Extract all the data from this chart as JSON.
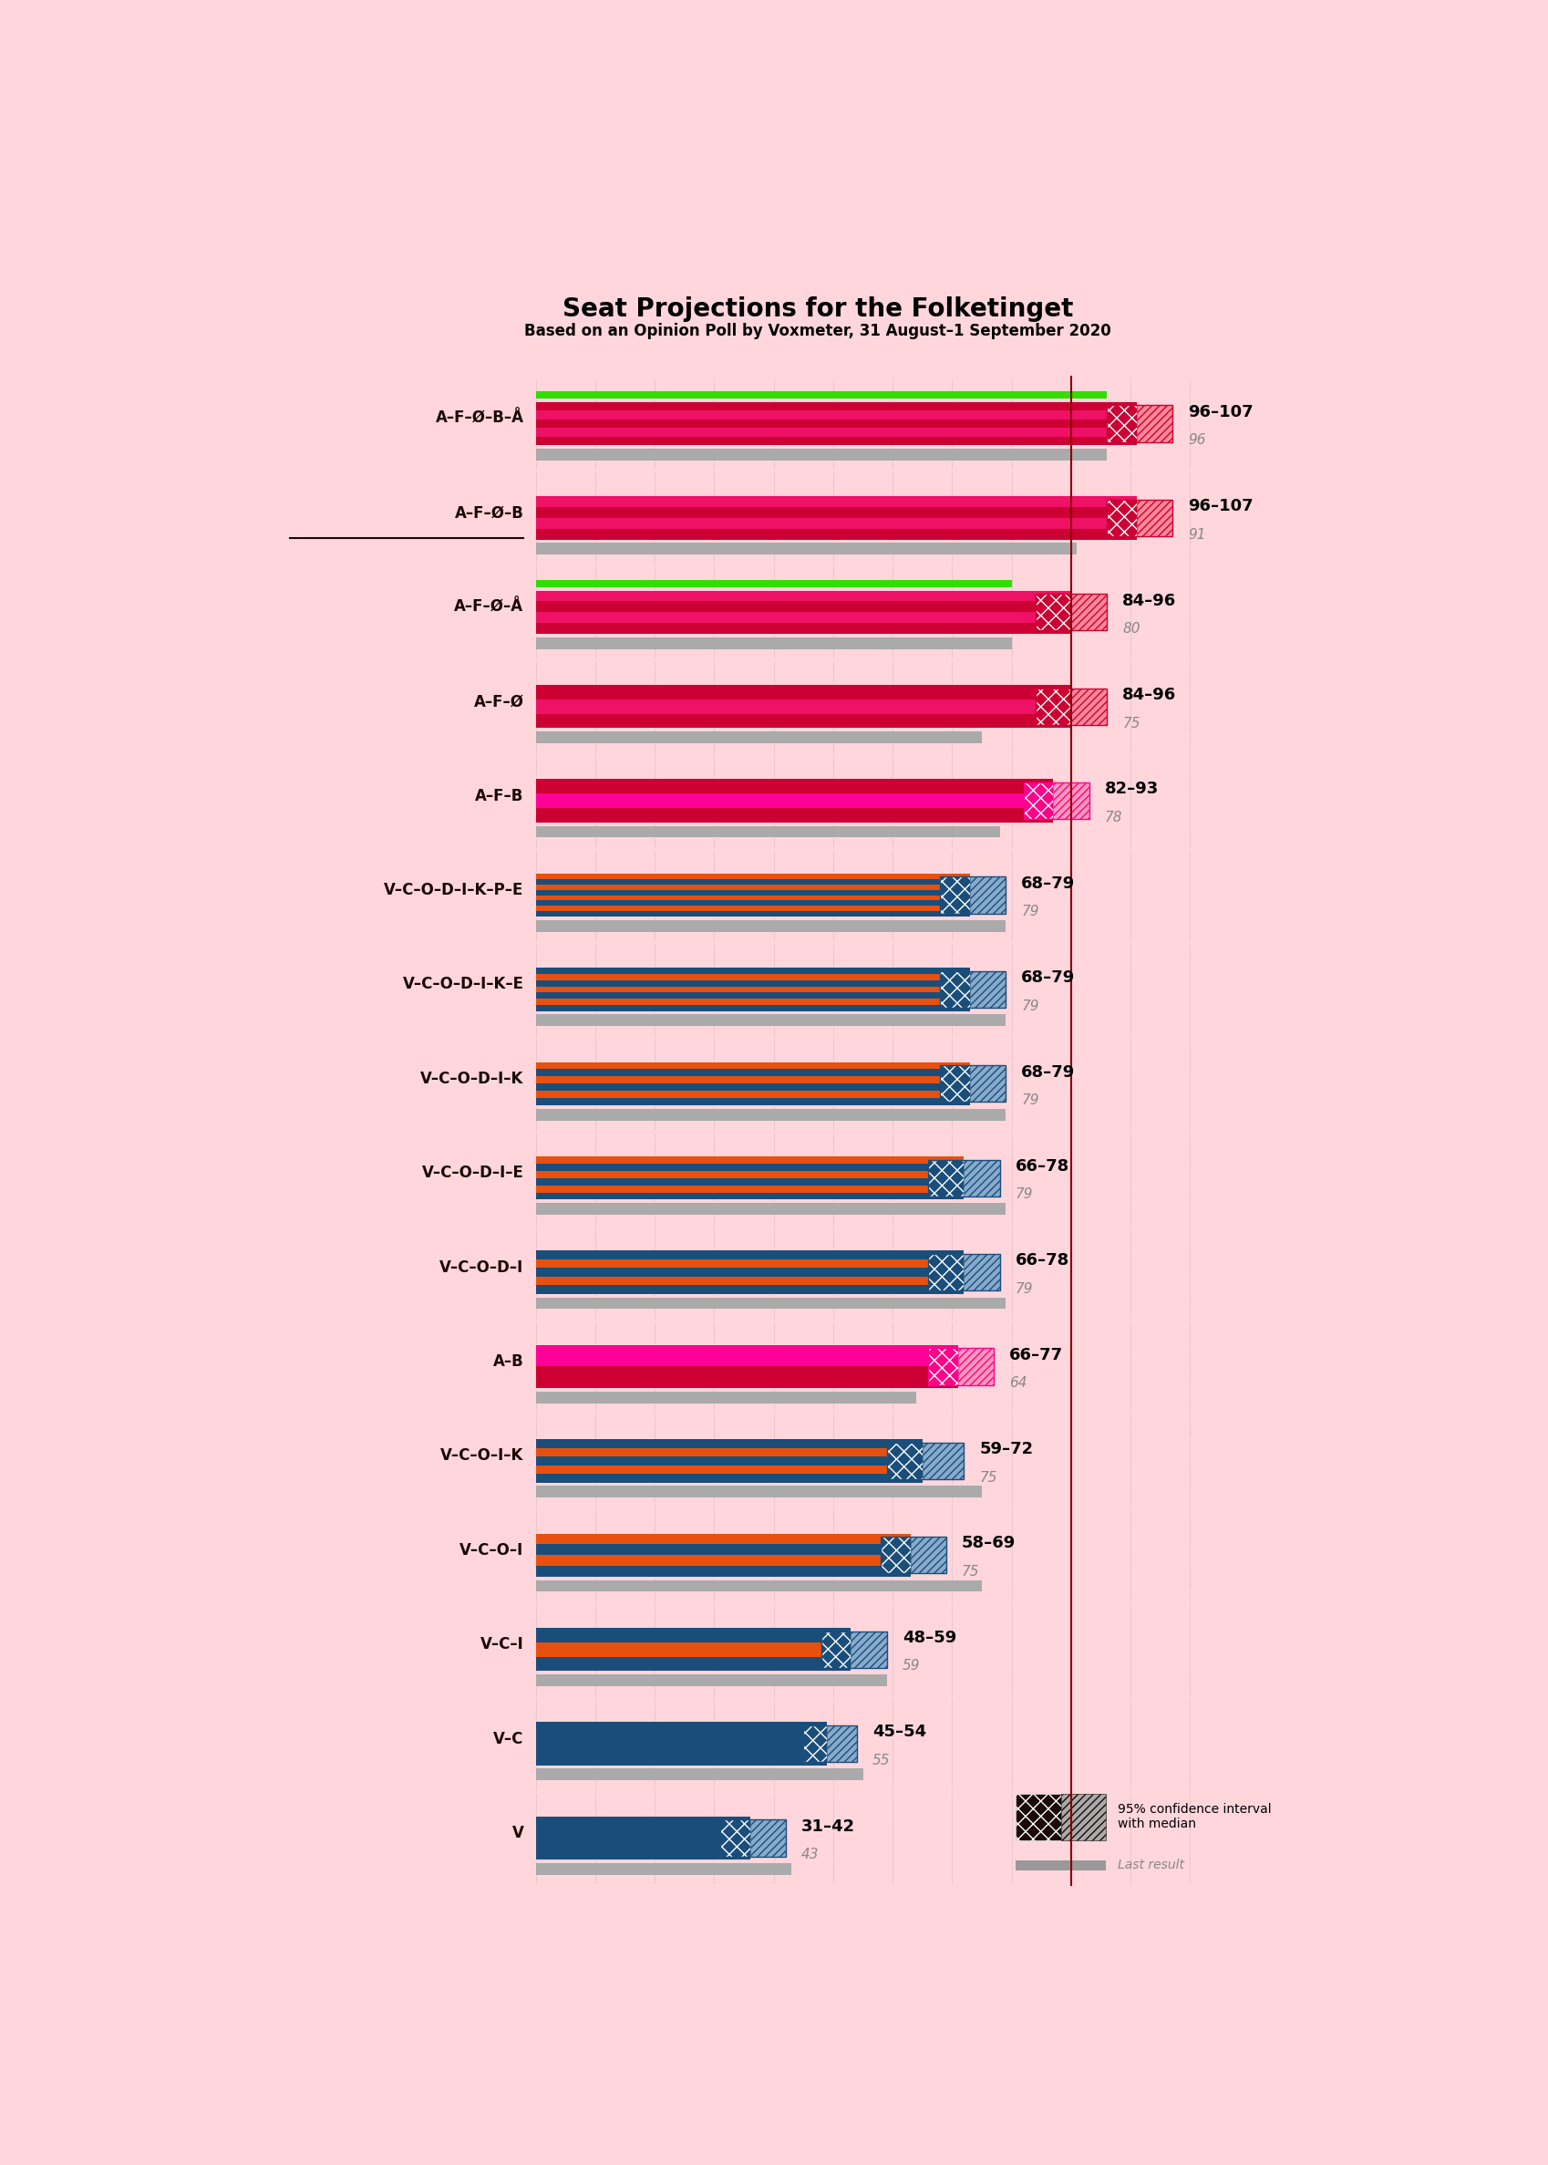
{
  "title": "Seat Projections for the Folketinget",
  "subtitle": "Based on an Opinion Poll by Voxmeter, 31 August–1 September 2020",
  "bg_color": "#FFD6DC",
  "coalitions": [
    {
      "label": "A–F–Ø–B–Å",
      "underline": false,
      "range_low": 96,
      "range_high": 107,
      "median": 101,
      "last_result": 96,
      "type": "red",
      "has_green": true
    },
    {
      "label": "A–F–Ø–B",
      "underline": true,
      "range_low": 96,
      "range_high": 107,
      "median": 101,
      "last_result": 91,
      "type": "red",
      "has_green": false
    },
    {
      "label": "A–F–Ø–Å",
      "underline": false,
      "range_low": 84,
      "range_high": 96,
      "median": 90,
      "last_result": 80,
      "type": "red",
      "has_green": true
    },
    {
      "label": "A–F–Ø",
      "underline": false,
      "range_low": 84,
      "range_high": 96,
      "median": 90,
      "last_result": 75,
      "type": "red",
      "has_green": false
    },
    {
      "label": "A–F–B",
      "underline": false,
      "range_low": 82,
      "range_high": 93,
      "median": 87,
      "last_result": 78,
      "type": "pink",
      "has_green": false
    },
    {
      "label": "V–C–O–D–I–K–P–E",
      "underline": false,
      "range_low": 68,
      "range_high": 79,
      "median": 73,
      "last_result": 79,
      "type": "blue_orange",
      "has_green": false
    },
    {
      "label": "V–C–O–D–I–K–E",
      "underline": false,
      "range_low": 68,
      "range_high": 79,
      "median": 73,
      "last_result": 79,
      "type": "blue_orange",
      "has_green": false
    },
    {
      "label": "V–C–O–D–I–K",
      "underline": false,
      "range_low": 68,
      "range_high": 79,
      "median": 73,
      "last_result": 79,
      "type": "blue_orange",
      "has_green": false
    },
    {
      "label": "V–C–O–D–I–E",
      "underline": false,
      "range_low": 66,
      "range_high": 78,
      "median": 72,
      "last_result": 79,
      "type": "blue_orange",
      "has_green": false
    },
    {
      "label": "V–C–O–D–I",
      "underline": false,
      "range_low": 66,
      "range_high": 78,
      "median": 72,
      "last_result": 79,
      "type": "blue_orange",
      "has_green": false
    },
    {
      "label": "A–B",
      "underline": false,
      "range_low": 66,
      "range_high": 77,
      "median": 71,
      "last_result": 64,
      "type": "pink",
      "has_green": false
    },
    {
      "label": "V–C–O–I–K",
      "underline": false,
      "range_low": 59,
      "range_high": 72,
      "median": 65,
      "last_result": 75,
      "type": "blue_orange",
      "has_green": false
    },
    {
      "label": "V–C–O–I",
      "underline": false,
      "range_low": 58,
      "range_high": 69,
      "median": 63,
      "last_result": 75,
      "type": "blue_orange",
      "has_green": false
    },
    {
      "label": "V–C–I",
      "underline": false,
      "range_low": 48,
      "range_high": 59,
      "median": 53,
      "last_result": 59,
      "type": "blue_orange",
      "has_green": false
    },
    {
      "label": "V–C",
      "underline": false,
      "range_low": 45,
      "range_high": 54,
      "median": 49,
      "last_result": 55,
      "type": "blue",
      "has_green": false
    },
    {
      "label": "V",
      "underline": false,
      "range_low": 31,
      "range_high": 42,
      "median": 36,
      "last_result": 43,
      "type": "blue",
      "has_green": false
    }
  ],
  "x_max": 113,
  "majority_line": 90,
  "grid_values": [
    0,
    10,
    20,
    30,
    40,
    50,
    60,
    70,
    80,
    90,
    100,
    110
  ],
  "red_stripes": [
    "#CC0033",
    "#EE1166",
    "#CC0033",
    "#EE1166",
    "#CC0033"
  ],
  "pink_stripes": [
    "#CC0033",
    "#FF0099",
    "#CC0033",
    "#FF0099"
  ],
  "blue_orange_stripes": [
    "#1A4E7A",
    "#E85010",
    "#1A4E7A",
    "#E85010",
    "#1A4E7A",
    "#E85010"
  ],
  "blue_stripes": [
    "#1A4E7A",
    "#1A4E7A",
    "#1A4E7A"
  ],
  "red_ci_color": "#CC0033",
  "pink_ci_color": "#FF0088",
  "blue_ci_color": "#1A4E7A",
  "orange_ci_color": "#E85010",
  "red_hatch_color": "#FF8899",
  "pink_hatch_color": "#FF99BB",
  "blue_hatch_color": "#88AACC",
  "orange_hatch_color": "#FF9966",
  "green_color": "#33DD00",
  "gray_color": "#AAAAAA",
  "majority_color": "#880000",
  "legend_ci_dark": "#1A0A08",
  "legend_ci_light": "#AAAAAA"
}
